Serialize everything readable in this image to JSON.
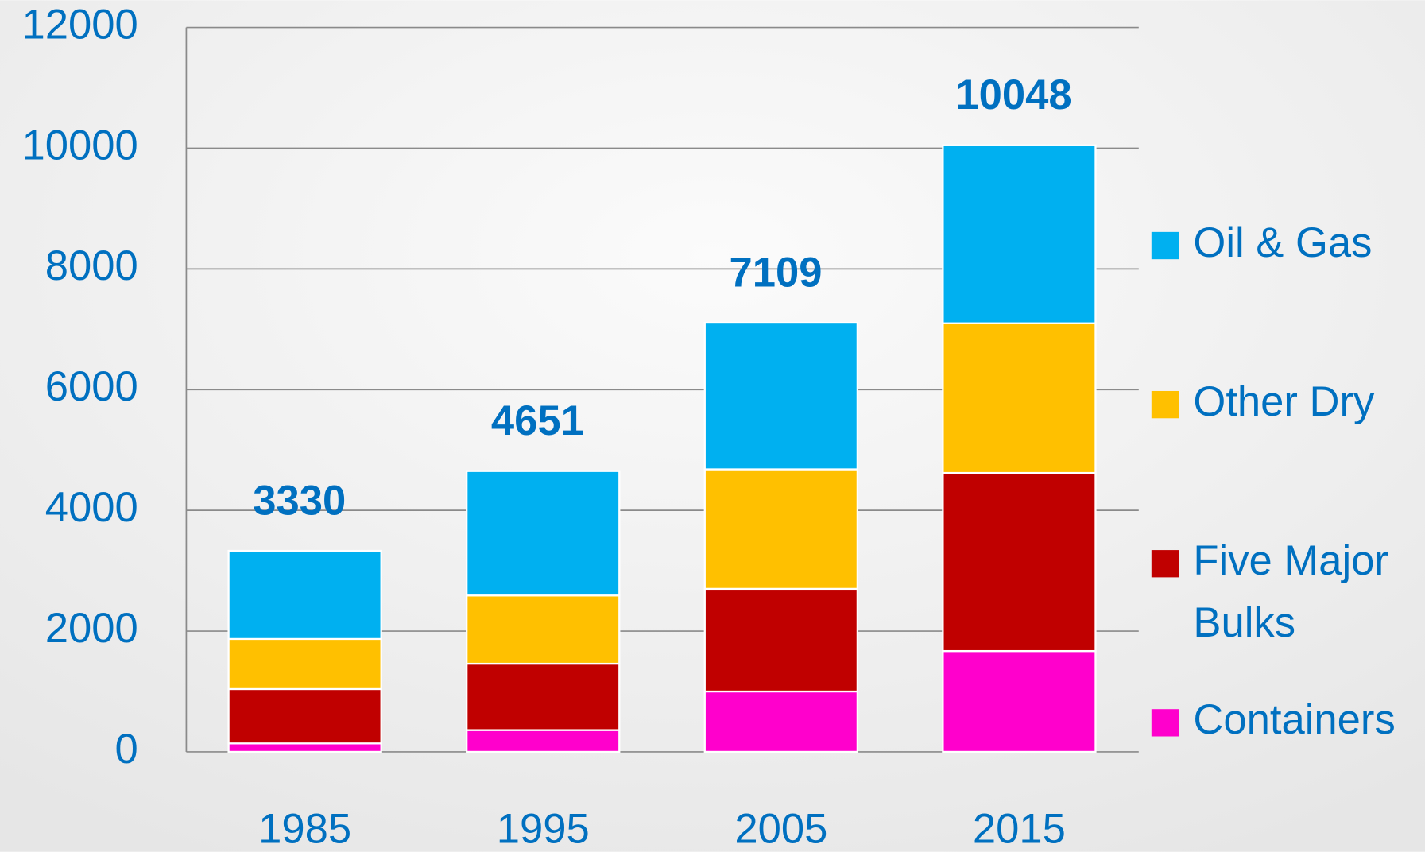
{
  "chart_data": {
    "type": "stacked_bar",
    "categories": [
      "1985",
      "1995",
      "2005",
      "2015"
    ],
    "series": [
      {
        "name": "Containers",
        "color": "#ff00cc",
        "values": [
          140,
          360,
          1000,
          1670
        ]
      },
      {
        "name": "Five Major Bulks",
        "color": "#c00000",
        "values": [
          900,
          1100,
          1700,
          2950
        ]
      },
      {
        "name": "Other Dry",
        "color": "#ffc000",
        "values": [
          830,
          1130,
          1980,
          2480
        ]
      },
      {
        "name": "Oil & Gas",
        "color": "#00b0f0",
        "values": [
          1460,
          2061,
          2429,
          2948
        ]
      }
    ],
    "totals": [
      3330,
      4651,
      7109,
      10048
    ],
    "ylim": [
      0,
      12000
    ],
    "yticks": [
      0,
      2000,
      4000,
      6000,
      8000,
      10000,
      12000
    ],
    "grid": true,
    "legend": "right"
  }
}
